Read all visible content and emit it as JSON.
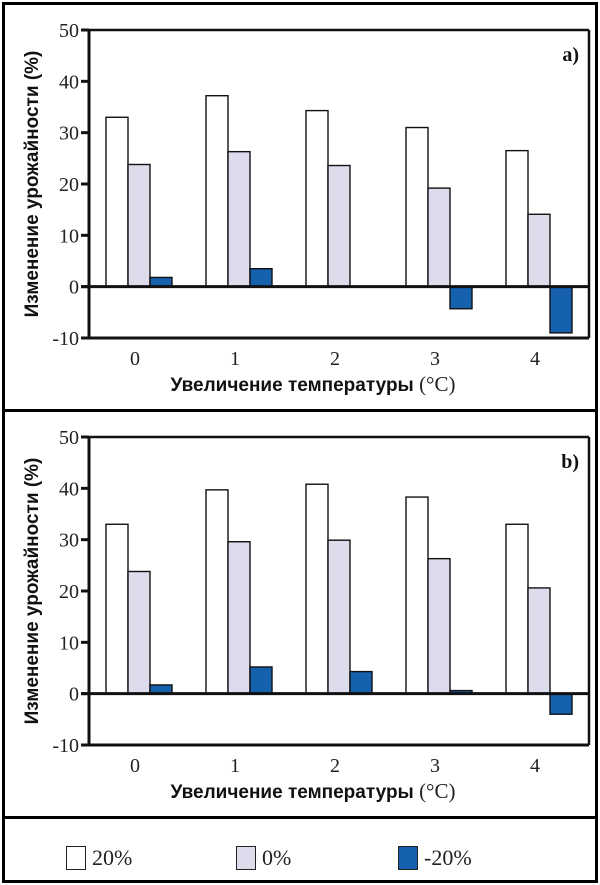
{
  "chart_data": [
    {
      "type": "bar",
      "panel_label": "a)",
      "title": "",
      "xlabel": "Увеличение температуры",
      "xlabel_unit": "(°C)",
      "ylabel": "Изменение урожайности (%)",
      "ylim": [
        -10,
        50
      ],
      "yticks": [
        "50",
        "40",
        "30",
        "20",
        "10",
        "0",
        "-10"
      ],
      "categories": [
        "0",
        "1",
        "2",
        "3",
        "4"
      ],
      "series": [
        {
          "name": "20%",
          "values": [
            33.0,
            37.2,
            34.3,
            31.0,
            26.5
          ]
        },
        {
          "name": "0%",
          "values": [
            23.8,
            26.3,
            23.6,
            19.2,
            14.1
          ]
        },
        {
          "name": "-20%",
          "values": [
            1.8,
            3.5,
            0.0,
            -4.3,
            -9.0
          ]
        }
      ],
      "grid": false,
      "legend": "bottom"
    },
    {
      "type": "bar",
      "panel_label": "b)",
      "title": "",
      "xlabel": "Увеличение температуры",
      "xlabel_unit": "(°C)",
      "ylabel": "Изменение урожайности (%)",
      "ylim": [
        -10,
        50
      ],
      "yticks": [
        "50",
        "40",
        "30",
        "20",
        "10",
        "0",
        "-10"
      ],
      "categories": [
        "0",
        "1",
        "2",
        "3",
        "4"
      ],
      "series": [
        {
          "name": "20%",
          "values": [
            33.0,
            39.7,
            40.8,
            38.3,
            33.0
          ]
        },
        {
          "name": "0%",
          "values": [
            23.8,
            29.6,
            29.9,
            26.3,
            20.6
          ]
        },
        {
          "name": "-20%",
          "values": [
            1.7,
            5.2,
            4.3,
            0.6,
            -4.0
          ]
        }
      ],
      "grid": false,
      "legend": "bottom"
    }
  ],
  "legend": {
    "items": [
      {
        "label": "20%",
        "color": "#ffffff"
      },
      {
        "label": "0%",
        "color": "#dcdcec"
      },
      {
        "label": "-20%",
        "color": "#1561ae"
      }
    ]
  },
  "colors": {
    "series": [
      "#ffffff",
      "#dcdcec",
      "#1561ae"
    ],
    "stroke": "#111111"
  }
}
